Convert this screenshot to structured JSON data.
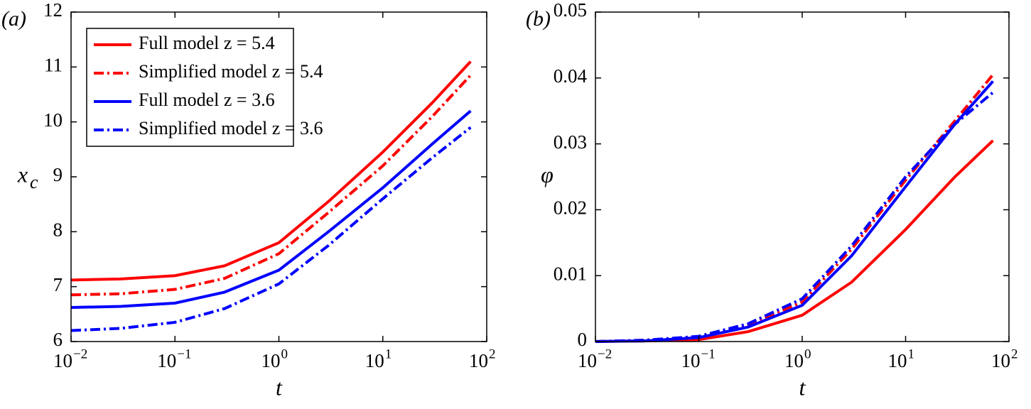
{
  "chart_data": [
    {
      "type": "line",
      "panel_label": "(a)",
      "xlabel": "t",
      "ylabel": {
        "text": "x",
        "subscript": "c"
      },
      "xscale": "log",
      "xlim": [
        0.01,
        100
      ],
      "xticks": [
        {
          "value": 0.01,
          "label": "10",
          "exponent": "−2"
        },
        {
          "value": 0.1,
          "label": "10",
          "exponent": "−1"
        },
        {
          "value": 1,
          "label": "10",
          "exponent": "0"
        },
        {
          "value": 10,
          "label": "10",
          "exponent": "1"
        },
        {
          "value": 100,
          "label": "10",
          "exponent": "2"
        }
      ],
      "ylim": [
        6,
        12
      ],
      "yticks": [
        6,
        7,
        8,
        9,
        10,
        11,
        12
      ],
      "legend": "upper left",
      "x": [
        0.01,
        0.03,
        0.1,
        0.3,
        1,
        3,
        10,
        30,
        70
      ],
      "series": [
        {
          "name": "Full model z = 5.4",
          "color": "#ff0000",
          "dash": "solid",
          "values": [
            7.12,
            7.14,
            7.2,
            7.38,
            7.8,
            8.55,
            9.45,
            10.35,
            11.1
          ]
        },
        {
          "name": "Simplified model z = 5.4",
          "color": "#ff0000",
          "dash": "dashdot",
          "values": [
            6.85,
            6.87,
            6.95,
            7.15,
            7.6,
            8.35,
            9.2,
            10.1,
            10.85
          ]
        },
        {
          "name": "Full model z = 3.6",
          "color": "#0000ff",
          "dash": "solid",
          "values": [
            6.62,
            6.64,
            6.7,
            6.9,
            7.3,
            8.0,
            8.8,
            9.6,
            10.2
          ]
        },
        {
          "name": "Simplified model z = 3.6",
          "color": "#0000ff",
          "dash": "dashdot",
          "values": [
            6.2,
            6.24,
            6.35,
            6.6,
            7.05,
            7.75,
            8.6,
            9.35,
            9.9
          ]
        }
      ]
    },
    {
      "type": "line",
      "panel_label": "(b)",
      "xlabel": "t",
      "ylabel": {
        "text": "φ"
      },
      "xscale": "log",
      "xlim": [
        0.01,
        100
      ],
      "xticks": [
        {
          "value": 0.01,
          "label": "10",
          "exponent": "−2"
        },
        {
          "value": 0.1,
          "label": "10",
          "exponent": "−1"
        },
        {
          "value": 1,
          "label": "10",
          "exponent": "0"
        },
        {
          "value": 10,
          "label": "10",
          "exponent": "1"
        },
        {
          "value": 100,
          "label": "10",
          "exponent": "2"
        }
      ],
      "ylim": [
        0,
        0.05
      ],
      "yticks": [
        0,
        0.01,
        0.02,
        0.03,
        0.04,
        0.05
      ],
      "x": [
        0.01,
        0.03,
        0.1,
        0.3,
        1,
        3,
        10,
        30,
        70
      ],
      "series": [
        {
          "color": "#ff0000",
          "dash": "solid",
          "values": [
            0,
            0.0001,
            0.0003,
            0.0015,
            0.004,
            0.009,
            0.017,
            0.025,
            0.0305
          ]
        },
        {
          "color": "#ff0000",
          "dash": "dashdot",
          "values": [
            0,
            0.0002,
            0.0007,
            0.0025,
            0.006,
            0.014,
            0.0245,
            0.0335,
            0.0405
          ]
        },
        {
          "color": "#0000ff",
          "dash": "solid",
          "values": [
            0,
            0.0001,
            0.0006,
            0.0022,
            0.0055,
            0.013,
            0.0235,
            0.033,
            0.0395
          ]
        },
        {
          "color": "#0000ff",
          "dash": "dashdot",
          "values": [
            0,
            0.0002,
            0.0008,
            0.0027,
            0.0065,
            0.0145,
            0.025,
            0.033,
            0.0378
          ]
        }
      ]
    }
  ]
}
